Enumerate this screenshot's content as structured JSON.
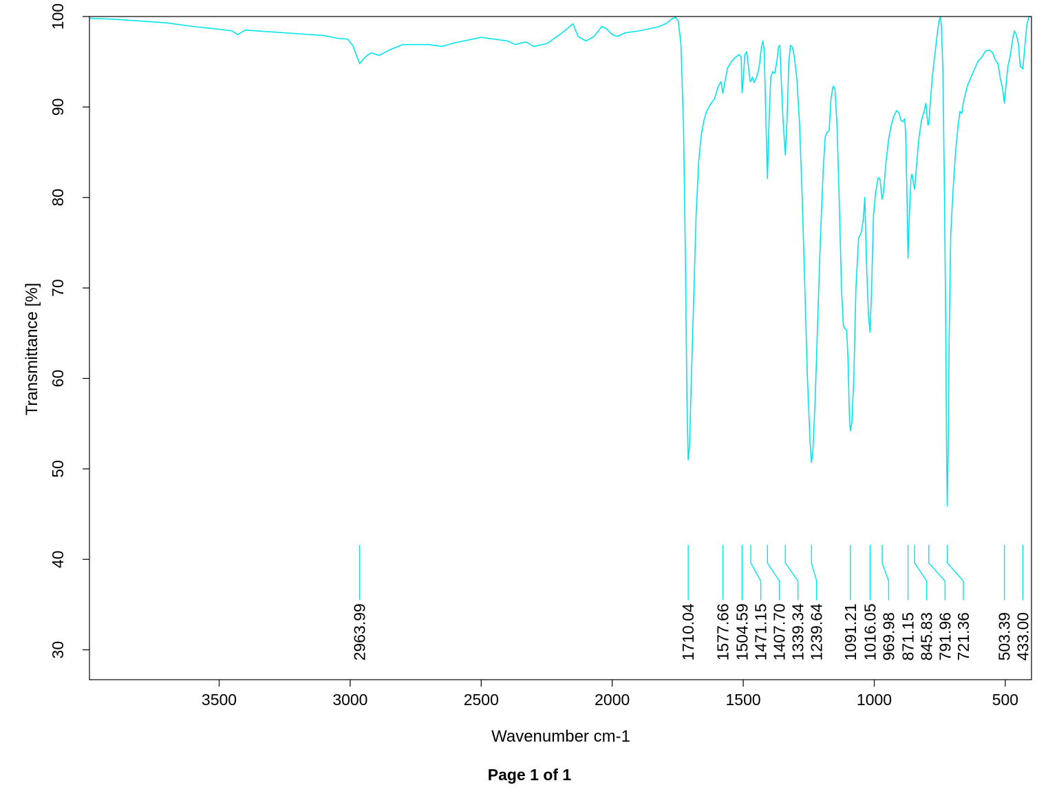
{
  "footer": {
    "page_label": "Page 1 of 1"
  },
  "chart_data": {
    "type": "line",
    "title": "",
    "xlabel": "Wavenumber cm-1",
    "ylabel": "Transmittance [%]",
    "xlim": [
      3995,
      400
    ],
    "ylim": [
      26.7,
      100
    ],
    "x_reversed": true,
    "x_ticks": [
      3500,
      3000,
      2500,
      2000,
      1500,
      1000,
      500
    ],
    "y_ticks": [
      30,
      40,
      50,
      60,
      70,
      80,
      90,
      100
    ],
    "line_color": "#00e5ee",
    "series": [
      {
        "points": [
          [
            3995,
            99.8
          ],
          [
            3900,
            99.7
          ],
          [
            3800,
            99.5
          ],
          [
            3700,
            99.3
          ],
          [
            3600,
            98.9
          ],
          [
            3500,
            98.6
          ],
          [
            3450,
            98.4
          ],
          [
            3430,
            98.0
          ],
          [
            3400,
            98.5
          ],
          [
            3300,
            98.3
          ],
          [
            3200,
            98.1
          ],
          [
            3100,
            97.9
          ],
          [
            3050,
            97.6
          ],
          [
            3010,
            97.5
          ],
          [
            2990,
            96.8
          ],
          [
            2963.99,
            94.8
          ],
          [
            2940,
            95.6
          ],
          [
            2920,
            96.0
          ],
          [
            2890,
            95.7
          ],
          [
            2850,
            96.3
          ],
          [
            2800,
            96.9
          ],
          [
            2700,
            96.9
          ],
          [
            2650,
            96.7
          ],
          [
            2600,
            97.1
          ],
          [
            2500,
            97.7
          ],
          [
            2400,
            97.3
          ],
          [
            2370,
            96.9
          ],
          [
            2330,
            97.2
          ],
          [
            2300,
            96.7
          ],
          [
            2250,
            97.0
          ],
          [
            2200,
            98.0
          ],
          [
            2170,
            98.7
          ],
          [
            2150,
            99.2
          ],
          [
            2130,
            97.8
          ],
          [
            2100,
            97.3
          ],
          [
            2070,
            97.8
          ],
          [
            2040,
            98.9
          ],
          [
            2020,
            98.6
          ],
          [
            2000,
            98.0
          ],
          [
            1980,
            97.8
          ],
          [
            1950,
            98.2
          ],
          [
            1900,
            98.4
          ],
          [
            1850,
            98.7
          ],
          [
            1820,
            98.9
          ],
          [
            1790,
            99.3
          ],
          [
            1770,
            99.8
          ],
          [
            1758,
            99.9
          ],
          [
            1748,
            99.5
          ],
          [
            1738,
            97.0
          ],
          [
            1728,
            88.0
          ],
          [
            1720,
            72.0
          ],
          [
            1715,
            58.0
          ],
          [
            1710.04,
            51.0
          ],
          [
            1705,
            52.5
          ],
          [
            1700,
            58.0
          ],
          [
            1690,
            68.0
          ],
          [
            1680,
            78.0
          ],
          [
            1670,
            84.0
          ],
          [
            1660,
            87.0
          ],
          [
            1650,
            88.5
          ],
          [
            1640,
            89.5
          ],
          [
            1625,
            90.3
          ],
          [
            1610,
            90.9
          ],
          [
            1595,
            92.3
          ],
          [
            1585,
            92.8
          ],
          [
            1577.66,
            91.5
          ],
          [
            1570,
            92.8
          ],
          [
            1560,
            94.3
          ],
          [
            1545,
            95.0
          ],
          [
            1530,
            95.5
          ],
          [
            1515,
            95.8
          ],
          [
            1508,
            95.5
          ],
          [
            1504.59,
            91.6
          ],
          [
            1500,
            93.0
          ],
          [
            1494,
            95.8
          ],
          [
            1487,
            96.1
          ],
          [
            1480,
            94.5
          ],
          [
            1474,
            92.9
          ],
          [
            1471.15,
            92.8
          ],
          [
            1465,
            93.3
          ],
          [
            1458,
            92.7
          ],
          [
            1448,
            93.4
          ],
          [
            1440,
            94.3
          ],
          [
            1430,
            96.7
          ],
          [
            1425,
            97.3
          ],
          [
            1420,
            96.2
          ],
          [
            1413,
            88.0
          ],
          [
            1407.7,
            82.1
          ],
          [
            1402,
            88.0
          ],
          [
            1395,
            93.3
          ],
          [
            1388,
            93.9
          ],
          [
            1380,
            93.7
          ],
          [
            1372,
            95.0
          ],
          [
            1365,
            96.7
          ],
          [
            1360,
            96.8
          ],
          [
            1355,
            93.0
          ],
          [
            1348,
            88.5
          ],
          [
            1339.34,
            84.7
          ],
          [
            1333,
            88.5
          ],
          [
            1326,
            95.0
          ],
          [
            1320,
            96.8
          ],
          [
            1312,
            96.6
          ],
          [
            1305,
            95.5
          ],
          [
            1295,
            93.0
          ],
          [
            1285,
            88.0
          ],
          [
            1275,
            80.0
          ],
          [
            1265,
            70.0
          ],
          [
            1255,
            60.0
          ],
          [
            1245,
            53.0
          ],
          [
            1239.64,
            50.7
          ],
          [
            1234,
            52.0
          ],
          [
            1225,
            58.0
          ],
          [
            1215,
            67.0
          ],
          [
            1205,
            76.0
          ],
          [
            1195,
            83.0
          ],
          [
            1187,
            86.7
          ],
          [
            1180,
            87.2
          ],
          [
            1172,
            87.4
          ],
          [
            1165,
            91.0
          ],
          [
            1157,
            92.3
          ],
          [
            1150,
            92.0
          ],
          [
            1142,
            88.0
          ],
          [
            1134,
            80.0
          ],
          [
            1125,
            70.0
          ],
          [
            1118,
            65.8
          ],
          [
            1112,
            65.5
          ],
          [
            1105,
            65.3
          ],
          [
            1100,
            62.0
          ],
          [
            1095,
            56.0
          ],
          [
            1091.21,
            54.2
          ],
          [
            1086,
            55.0
          ],
          [
            1078,
            60.0
          ],
          [
            1070,
            70.0
          ],
          [
            1060,
            75.5
          ],
          [
            1050,
            76.1
          ],
          [
            1042,
            77.5
          ],
          [
            1036,
            80.0
          ],
          [
            1030,
            73.0
          ],
          [
            1022,
            67.0
          ],
          [
            1016.05,
            65.1
          ],
          [
            1010,
            70.0
          ],
          [
            1003,
            78.0
          ],
          [
            995,
            80.5
          ],
          [
            985,
            82.2
          ],
          [
            978,
            82.0
          ],
          [
            970,
            79.8
          ],
          [
            965,
            80.5
          ],
          [
            955,
            84.0
          ],
          [
            945,
            86.5
          ],
          [
            935,
            88.0
          ],
          [
            925,
            89.0
          ],
          [
            915,
            89.6
          ],
          [
            905,
            89.3
          ],
          [
            898,
            88.5
          ],
          [
            890,
            88.4
          ],
          [
            884,
            88.7
          ],
          [
            880,
            87.0
          ],
          [
            875,
            80.0
          ],
          [
            871.15,
            73.3
          ],
          [
            866,
            78.0
          ],
          [
            860,
            82.1
          ],
          [
            856,
            82.6
          ],
          [
            850,
            81.5
          ],
          [
            845.83,
            80.9
          ],
          [
            840,
            83.0
          ],
          [
            830,
            86.5
          ],
          [
            820,
            88.5
          ],
          [
            810,
            89.5
          ],
          [
            803,
            90.4
          ],
          [
            795,
            88.0
          ],
          [
            791.96,
            88.1
          ],
          [
            786,
            90.5
          ],
          [
            778,
            93.5
          ],
          [
            768,
            96.0
          ],
          [
            758,
            98.5
          ],
          [
            752,
            99.6
          ],
          [
            748,
            100.0
          ],
          [
            744,
            99.0
          ],
          [
            738,
            94.0
          ],
          [
            732,
            80.0
          ],
          [
            727,
            65.0
          ],
          [
            724,
            52.0
          ],
          [
            721.36,
            45.9
          ],
          [
            718,
            52.0
          ],
          [
            714,
            65.0
          ],
          [
            708,
            76.0
          ],
          [
            700,
            80.5
          ],
          [
            690,
            85.0
          ],
          [
            680,
            88.0
          ],
          [
            673,
            89.5
          ],
          [
            666,
            89.3
          ],
          [
            660,
            90.5
          ],
          [
            645,
            92.3
          ],
          [
            625,
            93.7
          ],
          [
            605,
            95.0
          ],
          [
            590,
            95.5
          ],
          [
            575,
            96.2
          ],
          [
            560,
            96.3
          ],
          [
            548,
            96.0
          ],
          [
            538,
            95.2
          ],
          [
            528,
            94.8
          ],
          [
            518,
            93.0
          ],
          [
            510,
            92.0
          ],
          [
            503.39,
            90.4
          ],
          [
            497,
            92.5
          ],
          [
            490,
            94.5
          ],
          [
            482,
            95.5
          ],
          [
            472,
            97.5
          ],
          [
            465,
            98.4
          ],
          [
            458,
            98.0
          ],
          [
            450,
            97.0
          ],
          [
            443,
            94.5
          ],
          [
            436,
            94.3
          ],
          [
            433,
            94.2
          ],
          [
            426,
            96.5
          ],
          [
            418,
            99.0
          ],
          [
            410,
            100.0
          ],
          [
            400,
            100.0
          ]
        ]
      }
    ],
    "peaks": [
      {
        "x": 2963.99,
        "label": "2963.99",
        "text_x": 2963.99
      },
      {
        "x": 1710.04,
        "label": "1710.04",
        "text_x": 1710.04
      },
      {
        "x": 1577.66,
        "label": "1577.66",
        "text_x": 1577.66
      },
      {
        "x": 1504.59,
        "label": "1504.59",
        "text_x": 1504.59
      },
      {
        "x": 1471.15,
        "label": "1471.15",
        "text_x": 1433
      },
      {
        "x": 1407.7,
        "label": "1407.70",
        "text_x": 1362
      },
      {
        "x": 1339.34,
        "label": "1339.34",
        "text_x": 1291
      },
      {
        "x": 1239.64,
        "label": "1239.64",
        "text_x": 1220
      },
      {
        "x": 1091.21,
        "label": "1091.21",
        "text_x": 1091.21
      },
      {
        "x": 1016.05,
        "label": "1016.05",
        "text_x": 1016.05
      },
      {
        "x": 969.98,
        "label": "969.98",
        "text_x": 945
      },
      {
        "x": 871.15,
        "label": "871.15",
        "text_x": 871.15
      },
      {
        "x": 845.83,
        "label": "845.83",
        "text_x": 800
      },
      {
        "x": 791.96,
        "label": "791.96",
        "text_x": 730
      },
      {
        "x": 721.36,
        "label": "721.36",
        "text_x": 660
      },
      {
        "x": 503.39,
        "label": "503.39",
        "text_x": 503.39
      },
      {
        "x": 433.0,
        "label": "433.00",
        "text_x": 433.0
      }
    ]
  }
}
